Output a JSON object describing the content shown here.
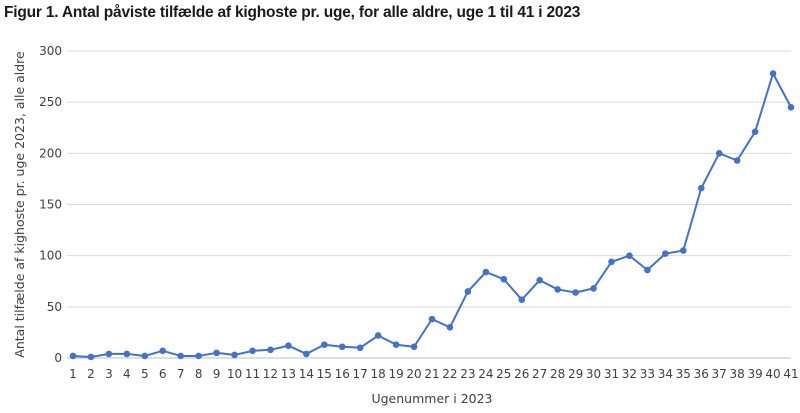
{
  "title": "Figur 1. Antal påviste tilfælde af kighoste pr. uge, for alle aldre, uge 1 til 41 i 2023",
  "chart_data": {
    "type": "line",
    "title": "Figur 1. Antal påviste tilfælde af kighoste pr. uge, for alle aldre, uge 1 til 41 i 2023",
    "xlabel": "Ugenummer i 2023",
    "ylabel": "Antal tilfælde af kighoste pr. uge 2023, alle aldre",
    "ylim": [
      0,
      300
    ],
    "yticks": [
      0,
      50,
      100,
      150,
      200,
      250,
      300
    ],
    "grid": true,
    "color": "#4472C4",
    "categories": [
      "1",
      "2",
      "3",
      "4",
      "5",
      "6",
      "7",
      "8",
      "9",
      "10",
      "11",
      "12",
      "13",
      "14",
      "15",
      "16",
      "17",
      "18",
      "19",
      "20",
      "21",
      "22",
      "23",
      "24",
      "25",
      "26",
      "27",
      "28",
      "29",
      "30",
      "31",
      "32",
      "33",
      "34",
      "35",
      "36",
      "37",
      "38",
      "39",
      "40",
      "41"
    ],
    "series": [
      {
        "values": [
          2,
          1,
          4,
          4,
          2,
          7,
          2,
          2,
          5,
          3,
          7,
          8,
          12,
          4,
          13,
          11,
          10,
          22,
          13,
          11,
          38,
          30,
          65,
          84,
          77,
          57,
          76,
          67,
          64,
          68,
          94,
          100,
          86,
          102,
          105,
          166,
          200,
          193,
          221,
          278,
          245
        ]
      }
    ]
  }
}
